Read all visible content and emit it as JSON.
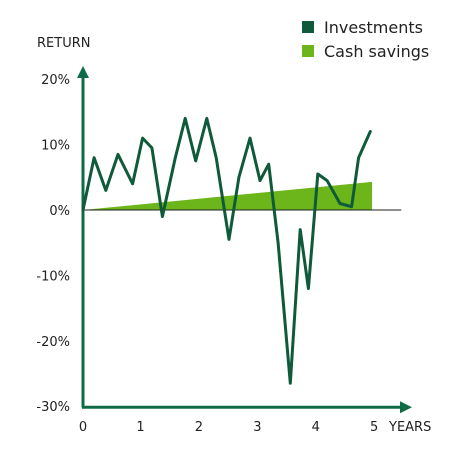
{
  "chart_data": {
    "type": "line",
    "ylabel": "RETURN",
    "xlabel": "YEARS",
    "xlim": [
      0,
      5
    ],
    "ylim": [
      -30,
      20
    ],
    "x_ticks": [
      0,
      1,
      2,
      3,
      4,
      5
    ],
    "y_ticks": [
      20,
      10,
      0,
      -10,
      -20,
      -30
    ],
    "legend_position": "top-right",
    "colors": {
      "axis": "#0f6b45",
      "investments": "#0f5a3a",
      "cash_savings": "#6cb51a"
    },
    "series": [
      {
        "name": "Investments",
        "kind": "line",
        "x": [
          0,
          0.19,
          0.39,
          0.6,
          0.85,
          1.02,
          1.18,
          1.36,
          1.58,
          1.75,
          1.93,
          2.12,
          2.28,
          2.5,
          2.67,
          2.86,
          3.03,
          3.18,
          3.34,
          3.55,
          3.72,
          3.86,
          4.02,
          4.18,
          4.4,
          4.6,
          4.72,
          4.92
        ],
        "y": [
          0,
          8,
          3,
          8.5,
          4,
          11,
          9.5,
          -1,
          8,
          14,
          7.5,
          14,
          8,
          -4.5,
          5,
          11,
          4.5,
          7,
          -5,
          -26.5,
          -3,
          -12,
          5.5,
          4.5,
          1,
          0.5,
          8,
          12
        ]
      },
      {
        "name": "Cash savings",
        "kind": "area",
        "x": [
          0,
          4.95
        ],
        "y": [
          0,
          4.3
        ]
      }
    ]
  }
}
